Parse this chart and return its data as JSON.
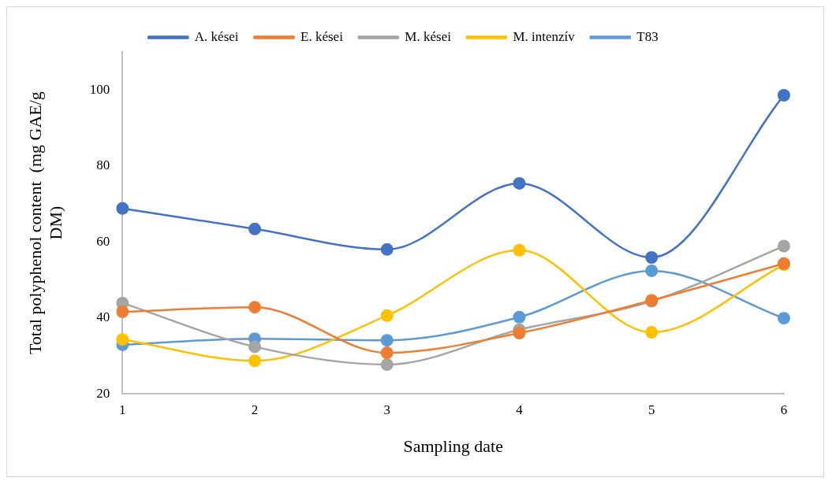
{
  "chart_data": {
    "type": "line",
    "xlabel": "Sampling date",
    "ylabel": "Total polyphenol content  (mg GAE/g\nDM)",
    "categories": [
      "1",
      "2",
      "3",
      "4",
      "5",
      "6"
    ],
    "series": [
      {
        "name": "A. kései",
        "color": "#4472c4",
        "values": [
          68.8,
          63.4,
          58.0,
          75.4,
          55.9,
          98.6
        ]
      },
      {
        "name": "E. kései",
        "color": "#ed7d31",
        "values": [
          41.6,
          42.8,
          30.8,
          36.0,
          44.6,
          54.3
        ]
      },
      {
        "name": "M. kései",
        "color": "#a5a5a5",
        "values": [
          43.9,
          32.4,
          27.7,
          36.9,
          44.4,
          58.9
        ]
      },
      {
        "name": "M. intenzív",
        "color": "#ffc000",
        "values": [
          34.3,
          28.7,
          40.6,
          57.8,
          36.2,
          54.0
        ]
      },
      {
        "name": "T83",
        "color": "#5b9bd5",
        "values": [
          32.9,
          34.5,
          34.1,
          40.2,
          52.4,
          39.9
        ]
      }
    ],
    "ylim": [
      20,
      110
    ],
    "yticks": [
      20,
      40,
      60,
      80,
      100
    ],
    "grid": false,
    "legend": "top",
    "marker": "circle",
    "line_style": "solid"
  }
}
